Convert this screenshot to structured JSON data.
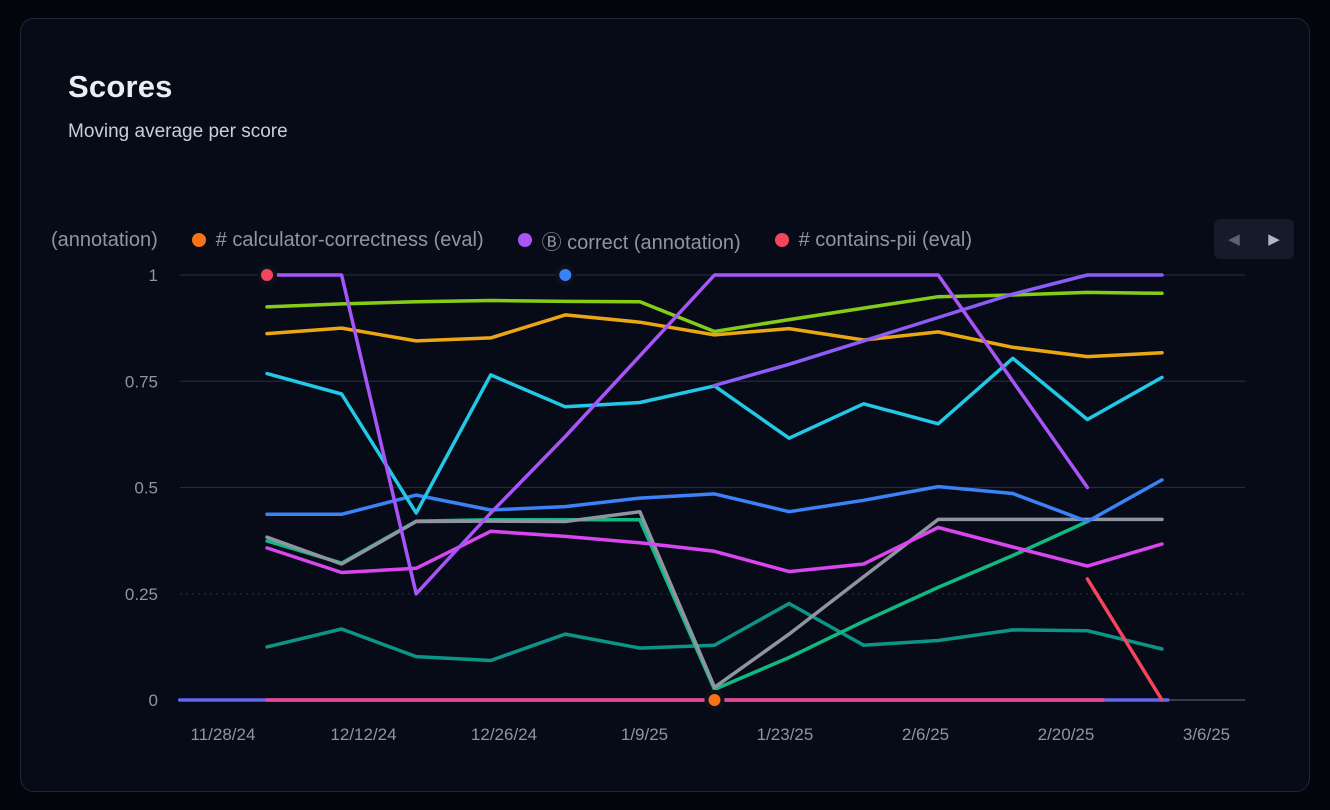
{
  "card": {
    "title": "Scores",
    "subtitle": "Moving average per score"
  },
  "legend": {
    "items": [
      {
        "label": "(annotation)",
        "color": null
      },
      {
        "label": "# calculator-correctness (eval)",
        "color": "#f97316"
      },
      {
        "label": "Ⓑ correct (annotation)",
        "color": "#a855f7"
      },
      {
        "label": "# contains-pii (eval)",
        "color": "#f5455c"
      }
    ],
    "pager": {
      "prev_label": "◀",
      "next_label": "▶"
    }
  },
  "chart_data": {
    "type": "line",
    "title": "Scores",
    "subtitle": "Moving average per score",
    "ylim": [
      0,
      1
    ],
    "grid": "horizontal",
    "y_tick_labels": [
      "0",
      "0.25",
      "0.5",
      "0.75",
      "1"
    ],
    "y_tick_values": [
      0,
      0.25,
      0.5,
      0.75,
      1
    ],
    "x_tick_labels": [
      "11/28/24",
      "12/12/24",
      "12/26/24",
      "1/9/25",
      "1/23/25",
      "2/6/25",
      "2/20/25",
      "3/6/25"
    ],
    "categories": [
      "12/2/24",
      "12/9/24",
      "12/17/24",
      "12/24/24",
      "1/1/25",
      "1/9/25",
      "1/16/25",
      "1/23/25",
      "1/31/25",
      "2/7/25",
      "2/14/25",
      "2/22/25",
      "3/1/25"
    ],
    "series": [
      {
        "name": "indigo-zero",
        "color": "#6366f1",
        "points": [
          [
            -1.17,
            0
          ],
          [
            12.08,
            0
          ]
        ]
      },
      {
        "name": "pink-zero",
        "color": "#ec4899",
        "points": [
          [
            0,
            0
          ],
          [
            11.21,
            0
          ]
        ]
      },
      {
        "name": "teal",
        "color": "#0d9488",
        "values": [
          0.125,
          0.167,
          0.102,
          0.093,
          0.155,
          0.122,
          0.129,
          0.227,
          0.129,
          0.14,
          0.165,
          0.163,
          0.12
        ]
      },
      {
        "name": "emerald",
        "color": "#10b981",
        "values": [
          0.374,
          0.322,
          0.421,
          0.424,
          0.424,
          0.424,
          0.025,
          0.1,
          0.185,
          0.265,
          0.34,
          0.42,
          null
        ]
      },
      {
        "name": "gray",
        "color": "#8f95a0",
        "values": [
          0.383,
          0.32,
          0.42,
          0.421,
          0.42,
          0.443,
          0.03,
          0.155,
          0.29,
          0.425,
          0.425,
          0.425,
          0.425
        ]
      },
      {
        "name": "magenta",
        "color": "#d946ef",
        "values": [
          0.358,
          0.3,
          0.31,
          0.397,
          0.385,
          0.37,
          0.35,
          0.302,
          0.32,
          0.406,
          0.36,
          0.315,
          0.367
        ]
      },
      {
        "name": "blue",
        "color": "#3b82f6",
        "values": [
          0.437,
          0.437,
          0.482,
          0.447,
          0.455,
          0.475,
          0.485,
          0.443,
          0.47,
          0.502,
          0.486,
          0.42,
          0.518
        ]
      },
      {
        "name": "cyan",
        "color": "#22c8e6",
        "values": [
          0.768,
          0.72,
          0.44,
          0.765,
          0.69,
          0.7,
          0.739,
          0.616,
          0.697,
          0.65,
          0.804,
          0.66,
          0.759
        ]
      },
      {
        "name": "calculator-correctness",
        "legend_label": "# calculator-correctness (eval)",
        "color": "#eba712",
        "values": [
          0.862,
          0.875,
          0.845,
          0.852,
          0.906,
          0.889,
          0.859,
          0.874,
          0.847,
          0.866,
          0.83,
          0.808,
          0.817
        ]
      },
      {
        "name": "lime",
        "color": "#84cc16",
        "values": [
          0.925,
          0.932,
          0.937,
          0.94,
          0.938,
          0.937,
          0.867,
          0.895,
          0.922,
          0.949,
          0.953,
          0.959,
          0.957
        ]
      },
      {
        "name": "violet-2",
        "color": "#8b5cf6",
        "values": [
          null,
          null,
          null,
          null,
          null,
          null,
          0.74,
          0.79,
          0.845,
          0.9,
          0.955,
          1.0,
          1.0
        ]
      },
      {
        "name": "correct-annotation",
        "legend_label": "Ⓑ correct (annotation)",
        "color": "#a855f7",
        "values": [
          1.0,
          1.0,
          0.25,
          0.44,
          0.62,
          0.81,
          1.0,
          1.0,
          1.0,
          1.0,
          0.75,
          0.5,
          null
        ]
      },
      {
        "name": "contains-pii",
        "legend_label": "# contains-pii (eval)",
        "color": "#f5455c",
        "points": [
          [
            11,
            0.285
          ],
          [
            12,
            0.0
          ]
        ]
      }
    ],
    "point_markers": [
      {
        "name": "contains-pii-point",
        "color": "#f5455c",
        "xi": 0,
        "v": 1.0
      },
      {
        "name": "blue-point",
        "color": "#3b82f6",
        "xi": 4,
        "v": 1.0
      },
      {
        "name": "calculator-correctness-point",
        "color": "#f97316",
        "xi": 6,
        "v": 0.0
      }
    ]
  }
}
